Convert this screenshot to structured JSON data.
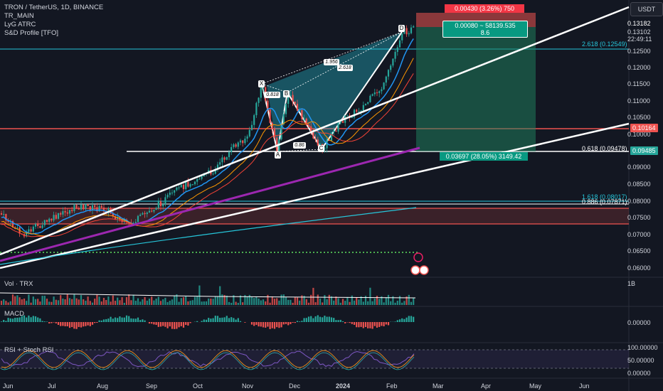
{
  "header": {
    "symbol_line": "TRON / TetherUS, 1D, BINANCE",
    "indicators": [
      "TR_MAIN",
      "LyG ATRC",
      "S&D Profile [TFO]"
    ],
    "currency_button": "USDT"
  },
  "price_axis": {
    "ticks": [
      "0.12500",
      "0.12000",
      "0.11500",
      "0.11000",
      "0.10500",
      "0.10000",
      "0.09000",
      "0.08500",
      "0.08000",
      "0.07500",
      "0.07000",
      "0.06500",
      "0.06000"
    ],
    "top_values": [
      "0.13182",
      "0.13102",
      "22:49:11"
    ]
  },
  "tags": {
    "current_price_red": "0.10164",
    "fib_green": "0.09485"
  },
  "fib_labels": {
    "f2618_top": "2.618 (0.12549)",
    "f0618": "0.618 (0.09478)",
    "f1618": "1.618 (0.08017)",
    "f0886": "0.886 (0.07871)"
  },
  "position_tool": {
    "stop_label": "0.00430 (3.26%) 750",
    "ratio_label_1": "0.00080 ~ 58139.535",
    "ratio_label_2": "8.6",
    "target_label": "0.03697 (28.05%) 3149.42"
  },
  "harmonic": {
    "points": [
      "X",
      "A",
      "B",
      "C",
      "D"
    ],
    "ratio_xb": "0.818",
    "ratio_ac": "0.86",
    "ratio_bd": "1.956",
    "ratio_xd": "2.618"
  },
  "volume_pane": {
    "title": "Vol · TRX",
    "axis": "1B"
  },
  "macd_pane": {
    "title": "MACD",
    "axis": "0.00000"
  },
  "rsi_pane": {
    "title": "RSI + Stoch RSI",
    "axis_top": "100.00000",
    "axis_mid": "50.00000",
    "axis_bot": "0.00000"
  },
  "time_axis": [
    "Jun",
    "Jul",
    "Aug",
    "Sep",
    "Oct",
    "Nov",
    "Dec",
    "2024",
    "Feb",
    "Mar",
    "Apr",
    "May",
    "Jun"
  ],
  "colors": {
    "background": "#131722",
    "up": "#26a69a",
    "down": "#ef5350",
    "fib_cyan": "#26c6da",
    "trend": "#ffffff",
    "purple": "#9c27b0"
  }
}
